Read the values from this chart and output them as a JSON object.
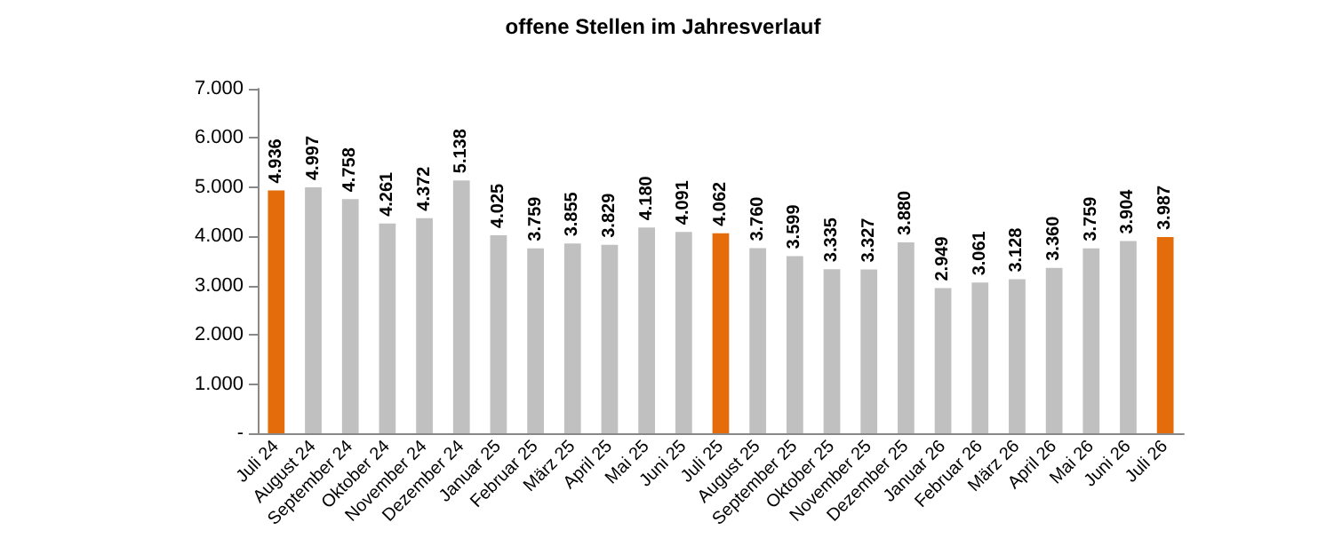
{
  "chart_data": {
    "type": "bar",
    "title": "offene Stellen im Jahresverlauf",
    "categories": [
      "Juli 24",
      "August 24",
      "September 24",
      "Oktober 24",
      "November 24",
      "Dezember 24",
      "Januar 25",
      "Februar 25",
      "März 25",
      "April 25",
      "Mai 25",
      "Juni 25",
      "Juli 25",
      "August 25",
      "September 25",
      "Oktober 25",
      "November 25",
      "Dezember 25",
      "Januar 26",
      "Februar 26",
      "März 26",
      "April 26",
      "Mai 26",
      "Juni 26",
      "Juli 26"
    ],
    "values": [
      4936,
      4997,
      4758,
      4261,
      4372,
      5138,
      4025,
      3759,
      3855,
      3829,
      4180,
      4091,
      4062,
      3760,
      3599,
      3335,
      3327,
      3880,
      2949,
      3061,
      3128,
      3360,
      3759,
      3904,
      3987
    ],
    "colors": [
      "#e46c0a",
      "#c0c0c0",
      "#c0c0c0",
      "#c0c0c0",
      "#c0c0c0",
      "#c0c0c0",
      "#c0c0c0",
      "#c0c0c0",
      "#c0c0c0",
      "#c0c0c0",
      "#c0c0c0",
      "#c0c0c0",
      "#e46c0a",
      "#c0c0c0",
      "#c0c0c0",
      "#c0c0c0",
      "#c0c0c0",
      "#c0c0c0",
      "#c0c0c0",
      "#c0c0c0",
      "#c0c0c0",
      "#c0c0c0",
      "#c0c0c0",
      "#c0c0c0",
      "#e46c0a"
    ],
    "value_labels": [
      "4.936",
      "4.997",
      "4.758",
      "4.261",
      "4.372",
      "5.138",
      "4.025",
      "3.759",
      "3.855",
      "3.829",
      "4.180",
      "4.091",
      "4.062",
      "3.760",
      "3.599",
      "3.335",
      "3.327",
      "3.880",
      "2.949",
      "3.061",
      "3.128",
      "3.360",
      "3.759",
      "3.904",
      "3.987"
    ],
    "ylim": [
      0,
      7000
    ],
    "yticks": [
      {
        "value": 0,
        "label": "-"
      },
      {
        "value": 1000,
        "label": "1.000"
      },
      {
        "value": 2000,
        "label": "2.000"
      },
      {
        "value": 3000,
        "label": "3.000"
      },
      {
        "value": 4000,
        "label": "4.000"
      },
      {
        "value": 5000,
        "label": "5.000"
      },
      {
        "value": 6000,
        "label": "6.000"
      },
      {
        "value": 7000,
        "label": "7.000"
      }
    ],
    "grid": false
  }
}
